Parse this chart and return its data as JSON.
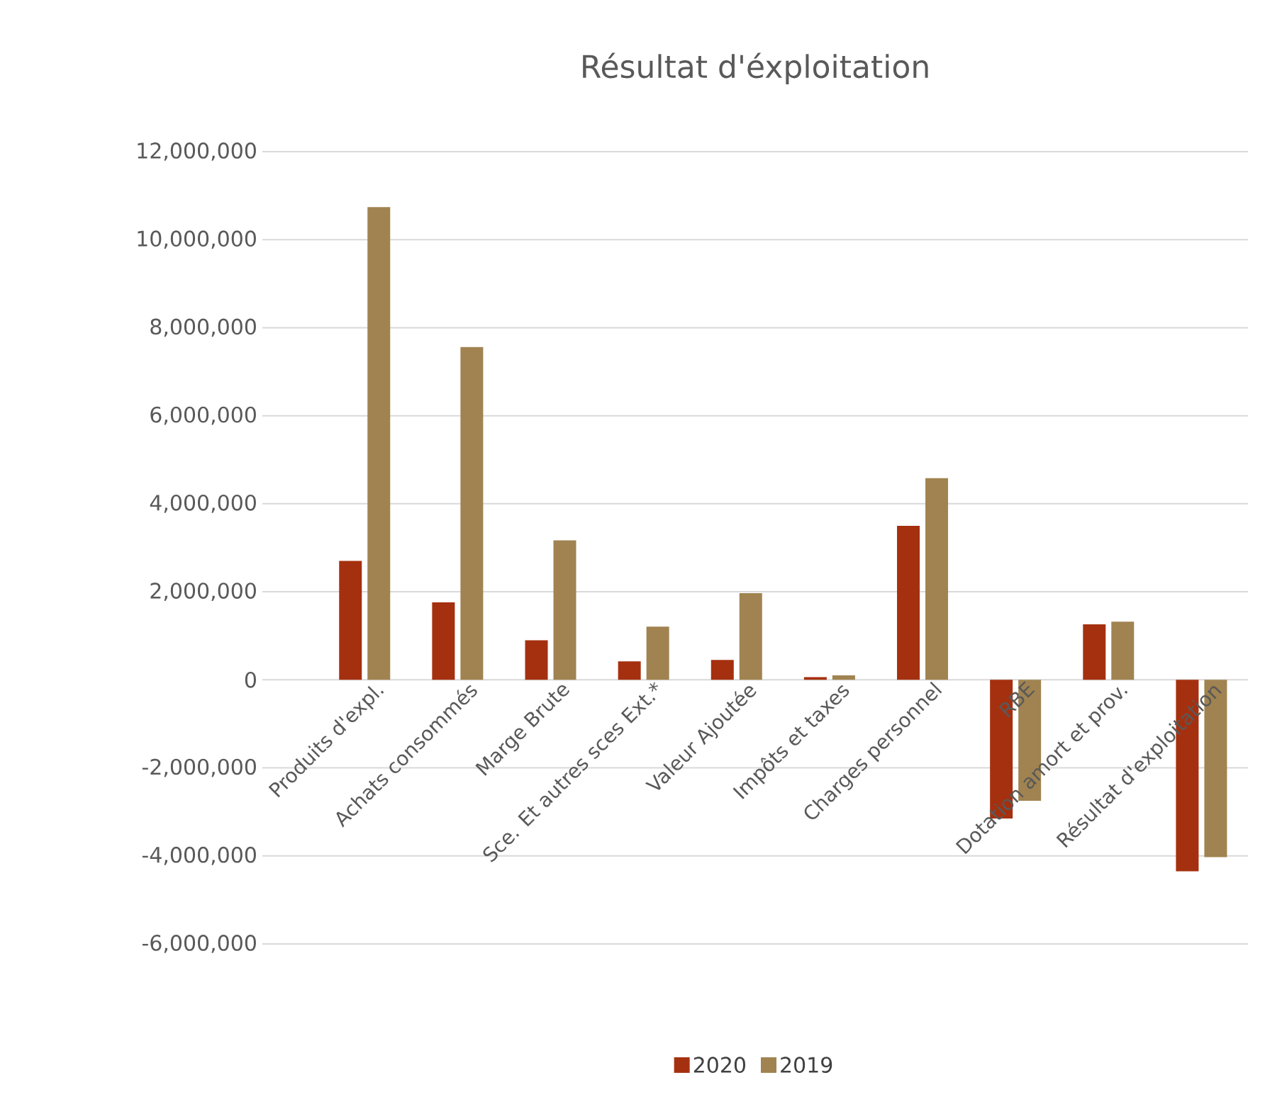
{
  "chart_data": {
    "type": "bar",
    "title": "Résultat d'éxploitation",
    "categories": [
      "Produits d'expl.",
      "Achats consommés",
      "Marge Brute",
      "Sce. Et autres sces Ext.*",
      "Valeur Ajoutée",
      "Impôts et taxes",
      "Charges personnel",
      "RBE",
      "Dotation amort et prov.",
      "Résultat d'exploitation"
    ],
    "series": [
      {
        "name": "2020",
        "color": "#a5300f",
        "values": [
          2700000,
          1760000,
          900000,
          420000,
          450000,
          60000,
          3500000,
          -3150000,
          1260000,
          -4350000
        ]
      },
      {
        "name": "2019",
        "color": "#a08350",
        "values": [
          10740000,
          7560000,
          3170000,
          1210000,
          1970000,
          100000,
          4580000,
          -2750000,
          1320000,
          -4030000
        ]
      }
    ],
    "ylim": [
      -6000000,
      12000000
    ],
    "yticks": [
      {
        "value": -6000000,
        "label": "-6,000,000"
      },
      {
        "value": -4000000,
        "label": "-4,000,000"
      },
      {
        "value": -2000000,
        "label": "-2,000,000"
      },
      0,
      {
        "value": 2000000,
        "label": "2,000,000"
      },
      {
        "value": 4000000,
        "label": "4,000,000"
      },
      {
        "value": 6000000,
        "label": "6,000,000"
      },
      {
        "value": 8000000,
        "label": "8,000,000"
      },
      {
        "value": 10000000,
        "label": "10,000,000"
      },
      {
        "value": 12000000,
        "label": "12,000,000"
      }
    ],
    "grid": "y",
    "legend": "bottom"
  }
}
